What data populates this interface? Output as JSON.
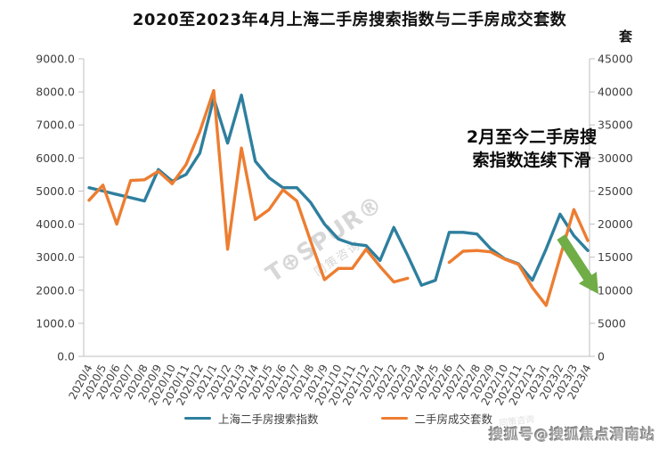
{
  "title": "2020至2023年4月上海二手房搜索指数与二手房成交套数",
  "right_axis_unit": "套",
  "annotation": {
    "full_text": "2月至今二手房搜索指数连续下滑",
    "line1": "2月至今二手房搜",
    "line2": "索指数连续下滑"
  },
  "watermark": {
    "brand": "T⊕SPUR®",
    "sub": "同策咨询",
    "mini": "同策咨询"
  },
  "footer_badge": "搜狐号@搜狐焦点渭南站",
  "colors": {
    "blue_series": "#2E7F9E",
    "orange_series": "#ED7D31",
    "arrow_green": "#70AD47",
    "axis_text": "#404040",
    "axis_line": "#BFBFBF"
  },
  "chart_data": {
    "type": "line",
    "title": "2020至2023年4月上海二手房搜索指数与二手房成交套数",
    "grid": false,
    "legend_position": "bottom",
    "categories": [
      "2020/4",
      "2020/5",
      "2020/6",
      "2020/7",
      "2020/8",
      "2020/9",
      "2020/10",
      "2020/11",
      "2020/12",
      "2021/1",
      "2021/2",
      "2021/3",
      "2021/4",
      "2021/5",
      "2021/6",
      "2021/7",
      "2021/8",
      "2021/9",
      "2021/10",
      "2021/11",
      "2021/12",
      "2022/1",
      "2022/2",
      "2022/3",
      "2022/4",
      "2022/5",
      "2022/6",
      "2022/7",
      "2022/8",
      "2022/9",
      "2022/10",
      "2022/11",
      "2022/12",
      "2023/1",
      "2023/2",
      "2023/3",
      "2023/4"
    ],
    "series": [
      {
        "name": "上海二手房搜索指数",
        "axis": "left",
        "color": "#2E7F9E",
        "values": [
          5100,
          5000,
          4900,
          4800,
          4700,
          5650,
          5300,
          5500,
          6150,
          7800,
          6450,
          7900,
          5900,
          5400,
          5100,
          5100,
          4650,
          4000,
          3550,
          3400,
          3350,
          2900,
          3900,
          3050,
          2150,
          2300,
          3750,
          3750,
          3700,
          3250,
          2950,
          2800,
          2300,
          3250,
          4300,
          3650,
          3200
        ]
      },
      {
        "name": "二手房成交套数",
        "axis": "right",
        "color": "#ED7D31",
        "values": [
          23600,
          25900,
          20000,
          26600,
          26700,
          28000,
          26100,
          29000,
          34000,
          40200,
          16200,
          31500,
          20700,
          22200,
          25200,
          23500,
          17400,
          11600,
          13300,
          13300,
          16200,
          13600,
          11250,
          11800,
          null,
          null,
          14200,
          15900,
          16000,
          15800,
          14700,
          13900,
          10400,
          7700,
          15000,
          22200,
          17500
        ]
      }
    ],
    "left_axis": {
      "min": 0,
      "max": 9000,
      "step": 1000,
      "ticks": [
        "0.0",
        "1000.0",
        "2000.0",
        "3000.0",
        "4000.0",
        "5000.0",
        "6000.0",
        "7000.0",
        "8000.0",
        "9000.0"
      ]
    },
    "right_axis": {
      "min": 0,
      "max": 45000,
      "step": 5000,
      "ticks": [
        "0",
        "5000",
        "10000",
        "15000",
        "20000",
        "25000",
        "30000",
        "35000",
        "40000",
        "45000"
      ],
      "unit": "套"
    },
    "annotations": [
      "2月至今二手房搜索指数连续下滑 (down arrow, green)"
    ]
  }
}
